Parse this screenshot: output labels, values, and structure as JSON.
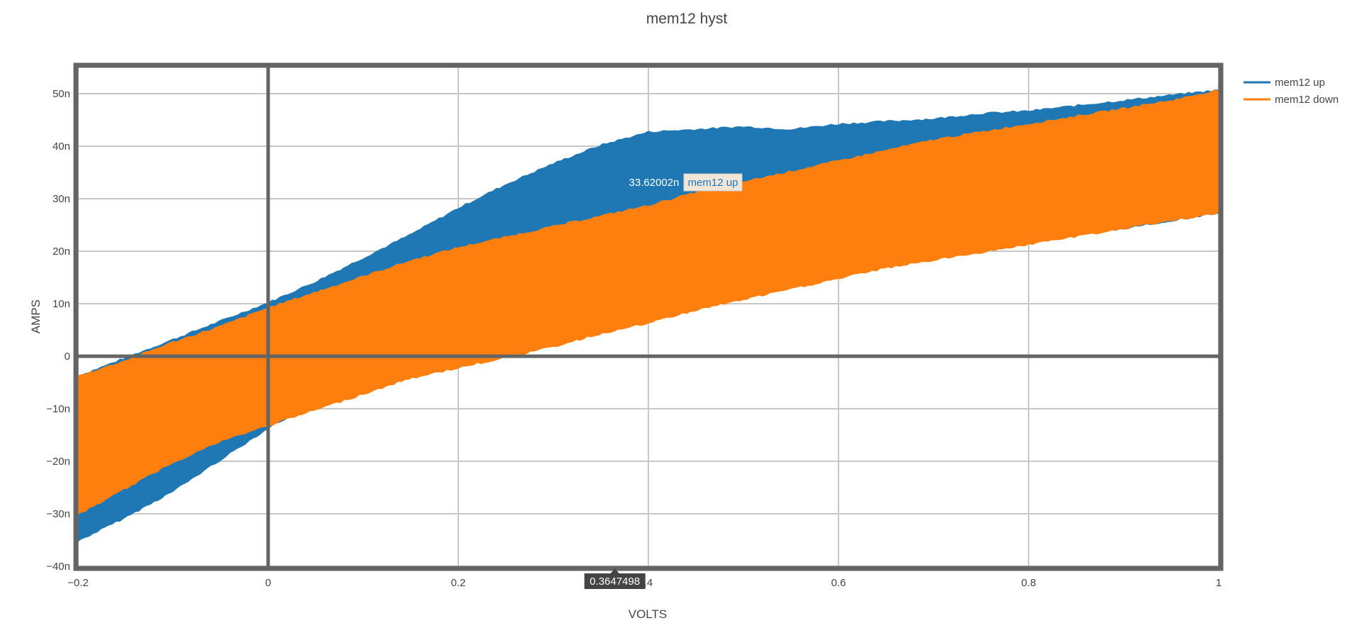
{
  "chart_data": {
    "type": "area",
    "title": "mem12 hyst",
    "xlabel": "VOLTS",
    "ylabel": "AMPS",
    "xlim": [
      -0.2,
      1.0
    ],
    "ylim": [
      -40,
      55
    ],
    "x_tick_values": [
      -0.2,
      0,
      0.2,
      0.4,
      0.6,
      0.8,
      1
    ],
    "x_tick_labels": [
      "−0.2",
      "0",
      "0.2",
      ".4",
      "0.6",
      "0.8",
      "1"
    ],
    "y_tick_values": [
      -40,
      -30,
      -20,
      -10,
      0,
      10,
      20,
      30,
      40,
      50
    ],
    "y_tick_labels": [
      "−40n",
      "−30n",
      "−20n",
      "−10n",
      "0",
      "10n",
      "20n",
      "30n",
      "40n",
      "50n"
    ],
    "grid": true,
    "legend_position": "top-right",
    "series": [
      {
        "name": "mem12 up",
        "color": "#1f77b4",
        "x": [
          -0.2,
          -0.15,
          -0.1,
          -0.05,
          0,
          0.05,
          0.1,
          0.15,
          0.2,
          0.25,
          0.3,
          0.35,
          0.4,
          0.45,
          0.5,
          0.55,
          0.6,
          0.65,
          0.7,
          0.75,
          0.8,
          0.85,
          0.9,
          0.95,
          1.0
        ],
        "y_upper": [
          -4,
          -0.5,
          3,
          6.5,
          10,
          14,
          18.5,
          23,
          28,
          32.5,
          36.5,
          40,
          42.5,
          43,
          43.5,
          43,
          44,
          44.5,
          45,
          46,
          46.5,
          47.5,
          48.5,
          49.5,
          50.5
        ],
        "y_lower": [
          -35,
          -30.5,
          -25.5,
          -19.5,
          -13.5,
          -8.5,
          -4,
          0,
          3.5,
          6.5,
          9,
          11,
          13,
          13.5,
          14,
          15,
          16.5,
          18,
          19.5,
          20.5,
          22,
          23.5,
          24.5,
          26,
          27.5
        ]
      },
      {
        "name": "mem12 down",
        "color": "#ff7f0e",
        "x": [
          -0.2,
          -0.15,
          -0.1,
          -0.05,
          0,
          0.05,
          0.1,
          0.15,
          0.2,
          0.25,
          0.3,
          0.35,
          0.4,
          0.45,
          0.5,
          0.55,
          0.6,
          0.65,
          0.7,
          0.75,
          0.8,
          0.85,
          0.9,
          0.95,
          1.0
        ],
        "y_upper": [
          -4,
          -1,
          2.5,
          5.5,
          9,
          12,
          15,
          18,
          20.5,
          22.5,
          24.5,
          26.5,
          28.5,
          31,
          33,
          35,
          37,
          39,
          41,
          42.5,
          44,
          45.5,
          47,
          48.5,
          50.5
        ],
        "y_lower": [
          -30,
          -25,
          -20,
          -16,
          -13,
          -10,
          -7,
          -4,
          -2,
          0,
          2,
          4.5,
          6.5,
          9,
          11,
          13,
          15,
          17,
          18.5,
          20,
          21.5,
          23,
          24.5,
          26,
          27.5
        ]
      }
    ],
    "hover": {
      "x_value": "0.3647498",
      "y_value": "33.62002n",
      "series_name": "mem12 up"
    }
  }
}
